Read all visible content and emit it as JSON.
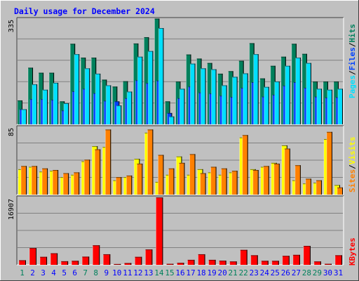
{
  "title": "Daily usage for December 2024",
  "colors": {
    "background": "#c0c0c0",
    "title_text": "#0000ff",
    "hits": "#00805c",
    "files": "#0040ff",
    "pages": "#00e0ff",
    "visits": "#ffff00",
    "sites": "#ff8000",
    "kbytes": "#ff0000",
    "weekend_label": "#00805c",
    "weekday_label": "#0000ff"
  },
  "chart_data": [
    {
      "type": "bar",
      "ylabel_max": "335",
      "ylim": [
        0,
        335
      ],
      "legend": {
        "first": "Pages",
        "sep1": "/",
        "second": "Files",
        "sep2": "/",
        "third": "Hits"
      },
      "series": [
        {
          "name": "Hits",
          "values": [
            76,
            180,
            164,
            164,
            73,
            256,
            212,
            212,
            142,
            120,
            137,
            257,
            277,
            336,
            73,
            136,
            222,
            209,
            195,
            161,
            169,
            202,
            258,
            146,
            186,
            215,
            256,
            224,
            136,
            136,
            136
          ]
        },
        {
          "name": "Files",
          "values": [
            48,
            80,
            80,
            78,
            44,
            105,
            113,
            99,
            75,
            73,
            83,
            140,
            131,
            139,
            36,
            83,
            120,
            101,
            98,
            91,
            87,
            116,
            134,
            88,
            94,
            123,
            134,
            116,
            88,
            85,
            86
          ]
        },
        {
          "name": "Pages",
          "values": [
            48,
            127,
            110,
            132,
            67,
            223,
            178,
            161,
            124,
            60,
            104,
            215,
            233,
            306,
            25,
            113,
            193,
            178,
            175,
            124,
            151,
            162,
            223,
            119,
            136,
            186,
            212,
            195,
            113,
            110,
            113
          ]
        }
      ]
    },
    {
      "type": "bar",
      "ylabel_max": "85",
      "ylim": [
        0,
        85
      ],
      "legend": {
        "first": "Sites",
        "sep1": "/",
        "second": "Visits"
      },
      "series": [
        {
          "name": "Visits",
          "values": [
            32,
            35,
            29,
            30,
            22,
            25,
            42,
            61,
            60,
            18,
            22,
            45,
            78,
            16,
            25,
            48,
            25,
            32,
            28,
            25,
            28,
            72,
            32,
            35,
            40,
            62,
            18,
            14,
            15,
            70,
            12
          ]
        },
        {
          "name": "Sites",
          "values": [
            36,
            36,
            33,
            31,
            27,
            28,
            44,
            57,
            82,
            22,
            24,
            39,
            82,
            50,
            33,
            40,
            51,
            27,
            35,
            33,
            30,
            75,
            31,
            36,
            39,
            58,
            37,
            20,
            18,
            79,
            9
          ]
        }
      ]
    },
    {
      "type": "bar",
      "ylabel_max": "16907",
      "ylim": [
        0,
        16907
      ],
      "legend": {
        "first": "KBytes"
      },
      "series": [
        {
          "name": "KBytes",
          "values": [
            1150,
            4200,
            2000,
            2900,
            900,
            1000,
            2050,
            4900,
            2650,
            200,
            450,
            2000,
            3850,
            16907,
            250,
            500,
            1250,
            2650,
            1250,
            1050,
            850,
            3750,
            2400,
            1000,
            1000,
            2250,
            2500,
            4750,
            850,
            250,
            2400
          ]
        }
      ]
    }
  ],
  "days": [
    "1",
    "2",
    "3",
    "4",
    "5",
    "6",
    "7",
    "8",
    "9",
    "10",
    "11",
    "12",
    "13",
    "14",
    "15",
    "16",
    "17",
    "18",
    "19",
    "20",
    "21",
    "22",
    "23",
    "24",
    "25",
    "26",
    "27",
    "28",
    "29",
    "30",
    "31"
  ],
  "weekend_days": [
    1,
    7,
    8,
    14,
    15,
    21,
    22,
    28,
    29
  ]
}
